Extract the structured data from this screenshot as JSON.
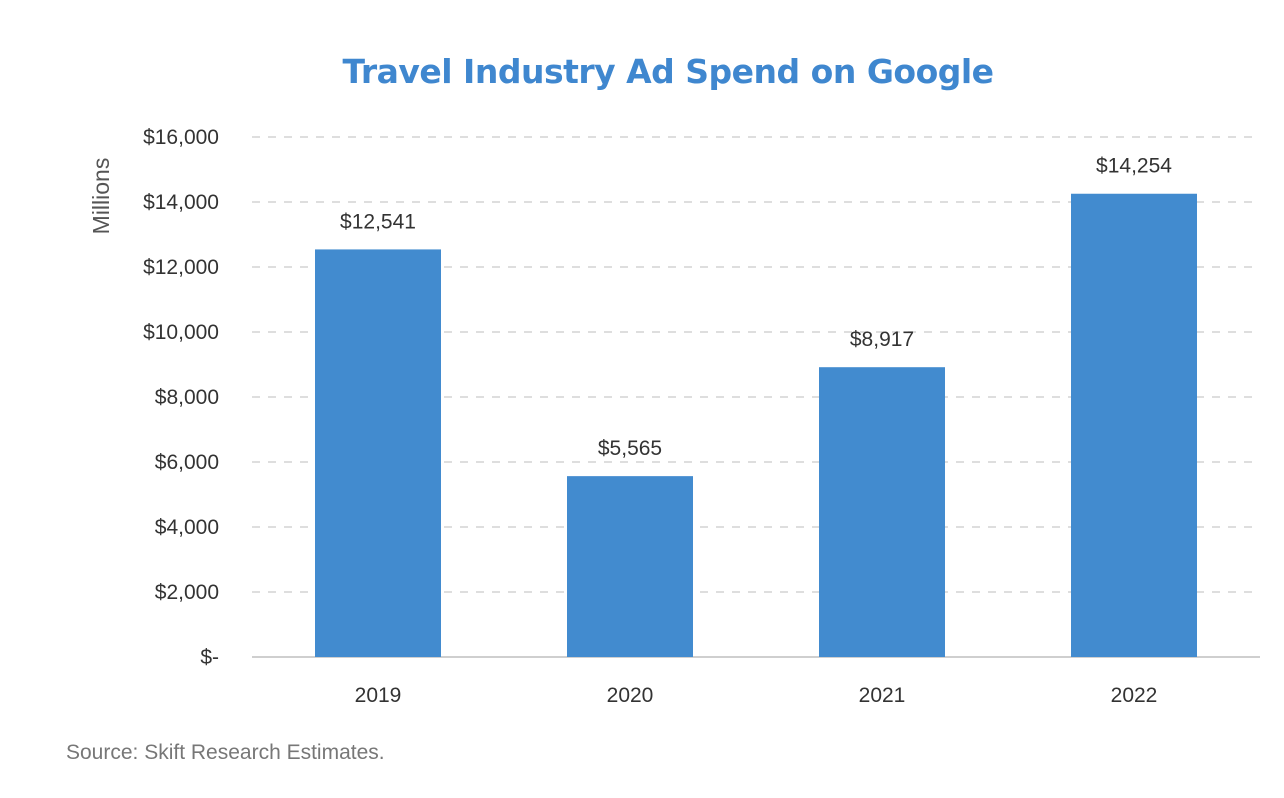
{
  "colors": {
    "bar": "#428bcf",
    "title": "#3f87cf",
    "grid": "#d4d4d4",
    "axis": "#cfcfcf",
    "text": "#333333"
  },
  "chart_data": {
    "type": "bar",
    "title": "Travel Industry Ad Spend on Google",
    "xlabel": "",
    "ylabel": "Millions",
    "categories": [
      "2019",
      "2020",
      "2021",
      "2022"
    ],
    "values": [
      12541,
      5565,
      8917,
      14254
    ],
    "data_labels": [
      "$12,541",
      "$5,565",
      "$8,917",
      "$14,254"
    ],
    "ylim": [
      0,
      16000
    ],
    "yticks": [
      0,
      2000,
      4000,
      6000,
      8000,
      10000,
      12000,
      14000,
      16000
    ],
    "ytick_labels": [
      "$-",
      "$2,000",
      "$4,000",
      "$6,000",
      "$8,000",
      "$10,000",
      "$12,000",
      "$14,000",
      "$16,000"
    ],
    "grid": true,
    "grid_style": "dashed",
    "legend": "none"
  },
  "source": "Source: Skift Research Estimates."
}
